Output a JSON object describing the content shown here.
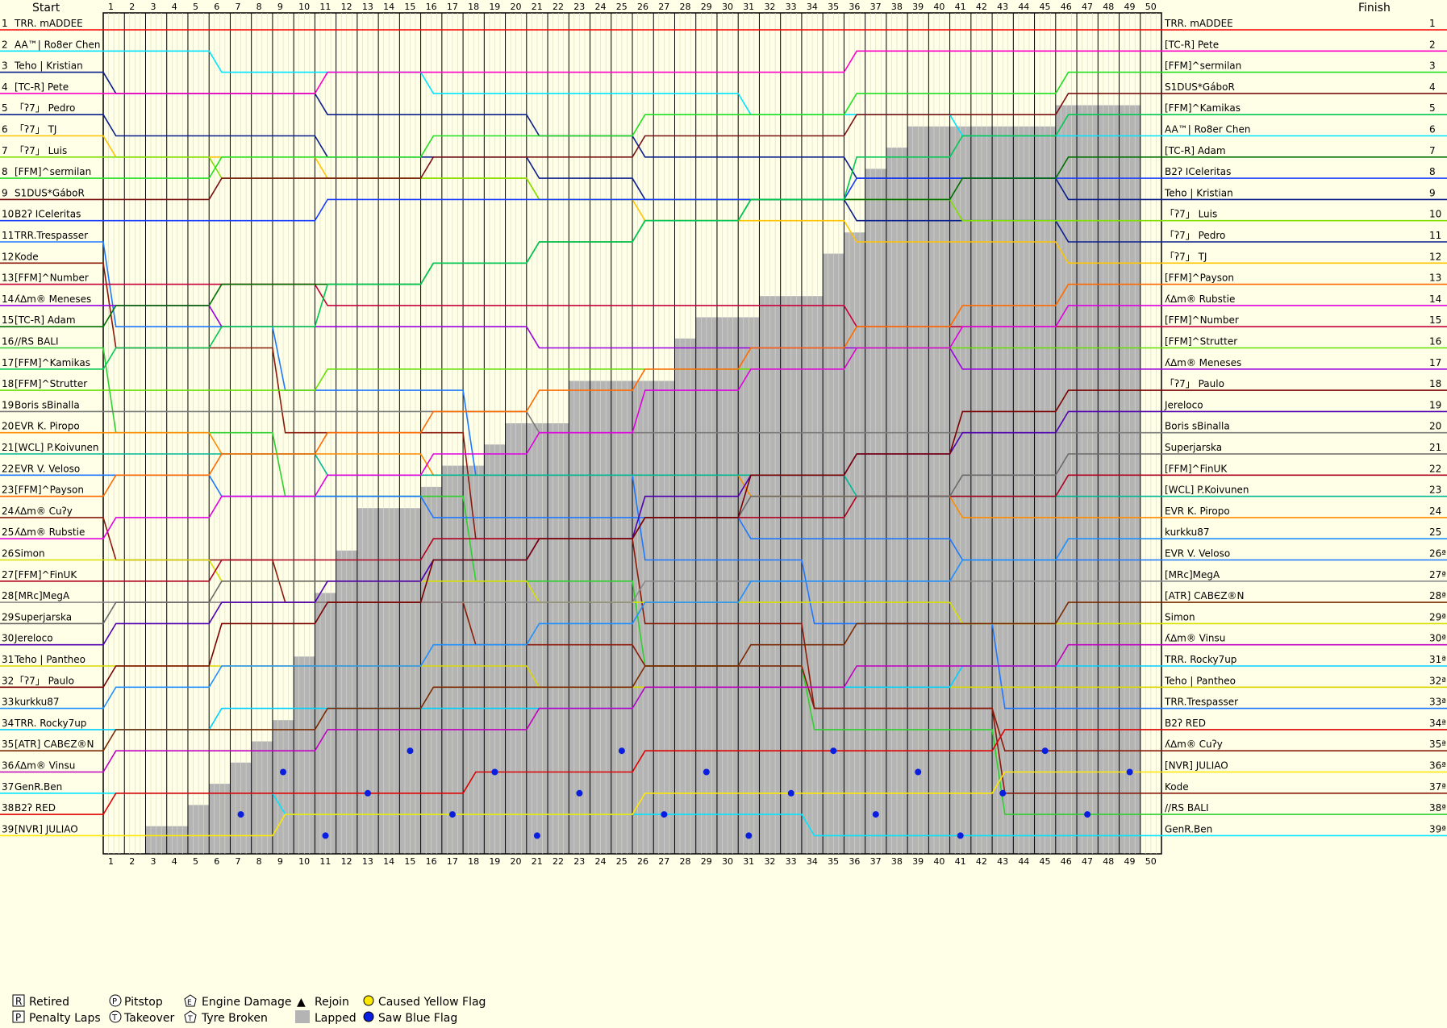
{
  "chart_data": {
    "type": "line",
    "header": {
      "start": "Start",
      "finish": "Finish"
    },
    "laps": 50,
    "positions": 39,
    "start_grid": [
      "TRR. mADDEE",
      "AA™| Ro8er Chen",
      "Teho | Kristian",
      "[TC-R] Pete",
      "「ʔ7」 Pedro",
      "「ʔ7」 TJ",
      "「ʔ7」 Luis",
      "[FFM]^sermilan",
      "S1DUS*GáboR",
      "B2ʔ ICeleritas",
      "TRR.Trespasser",
      "Kode",
      "[FFM]^Number",
      "ʎ∆m® Meneses",
      "[TC-R] Adam",
      "//RS BALI",
      "[FFM]^Kamikas",
      "[FFM]^Strutter",
      "Boris sBinalla",
      "EVR K. Piropo",
      "[WCL] P.Koivunen",
      "EVR V. Veloso",
      "[FFM]^Payson",
      "ʎ∆m® Cuʔy",
      "ʎ∆m® Rubstie",
      "Simon",
      "[FFM]^FinUK",
      "[MRc]MegA",
      "Superjarska",
      "Jereloco",
      "Teho | Pantheo",
      "「ʔ7」 Paulo",
      "kurkku87",
      "TRR. Rocky7up",
      "[ATR] CABЄZ®N",
      "ʎ∆m® Vinsu",
      "GenR.Ben",
      "B2ʔ RED",
      "[NVR] JULIAO"
    ],
    "finish_order": [
      "TRR. mADDEE",
      "[TC-R] Pete",
      "[FFM]^sermilan",
      "S1DUS*GáboR",
      "[FFM]^Kamikas",
      "AA™| Ro8er Chen",
      "[TC-R] Adam",
      "B2ʔ ICeleritas",
      "Teho | Kristian",
      "「ʔ7」 Luis",
      "「ʔ7」 Pedro",
      "「ʔ7」 TJ",
      "[FFM]^Payson",
      "ʎ∆m® Rubstie",
      "[FFM]^Number",
      "[FFM]^Strutter",
      "ʎ∆m® Meneses",
      "「ʔ7」 Paulo",
      "Jereloco",
      "Boris sBinalla",
      "Superjarska",
      "[FFM]^FinUK",
      "[WCL] P.Koivunen",
      "EVR K. Piropo",
      "kurkku87",
      "EVR V. Veloso",
      "[MRc]MegA",
      "[ATR] CABЄZ®N",
      "Simon",
      "ʎ∆m® Vinsu",
      "TRR. Rocky7up",
      "Teho | Pantheo",
      "TRR.Trespasser",
      "B2ʔ RED",
      "ʎ∆m® Cuʔy",
      "[NVR] JULIAO",
      "Kode",
      "//RS BALI",
      "GenR.Ben"
    ],
    "finish_position_labels": [
      "1",
      "2",
      "3",
      "4",
      "5",
      "6",
      "7",
      "8",
      "9",
      "10",
      "11",
      "12",
      "13",
      "14",
      "15",
      "16",
      "17",
      "18",
      "19",
      "20",
      "21",
      "22",
      "23",
      "24",
      "25",
      "26ª",
      "27ª",
      "28ª",
      "29ª",
      "30ª",
      "31ª",
      "32ª",
      "33ª",
      "34ª",
      "35ª",
      "36ª",
      "37ª",
      "38ª",
      "39ª"
    ],
    "retired": [
      "TRR.Trespasser",
      "B2ʔ RED",
      "ʎ∆m® Cuʔy",
      "[NVR] JULIAO",
      "Kode",
      "//RS BALI",
      "GenR.Ben"
    ],
    "driver_colors": {
      "TRR. mADDEE": "#FF0000",
      "AA™| Ro8er Chen": "#00E5FF",
      "Teho | Kristian": "#0A1E8C",
      "[TC-R] Pete": "#FF00C8",
      "「ʔ7」 Pedro": "#0A1E8C",
      "「ʔ7」 TJ": "#FFC400",
      "「ʔ7」 Luis": "#80E000",
      "[FFM]^sermilan": "#20E020",
      "S1DUS*GáboR": "#7A1010",
      "B2ʔ ICeleritas": "#1A3CFF",
      "TRR.Trespasser": "#1E78FF",
      "Kode": "#8B1A0A",
      "[FFM]^Number": "#C8003C",
      "ʎ∆m® Meneses": "#9B00E0",
      "[TC-R] Adam": "#007000",
      "//RS BALI": "#2ED02E",
      "[FFM]^Kamikas": "#00C853",
      "[FFM]^Strutter": "#66E000",
      "Boris sBinalla": "#7A7A7A",
      "EVR K. Piropo": "#FF8C00",
      "[WCL] P.Koivunen": "#00B894",
      "EVR V. Veloso": "#1E78FF",
      "[FFM]^Payson": "#FF6A00",
      "ʎ∆m® Cuʔy": "#8B1A0A",
      "ʎ∆m® Rubstie": "#E000E0",
      "Simon": "#D8E000",
      "[FFM]^FinUK": "#B00020",
      "[MRc]MegA": "#8A8A8A",
      "Superjarska": "#6A6A6A",
      "Jereloco": "#5000B0",
      "Teho | Pantheo": "#D8D800",
      "「ʔ7」 Paulo": "#7A0000",
      "kurkku87": "#1E90FF",
      "TRR. Rocky7up": "#00D0FF",
      "[ATR] CABЄZ®N": "#7A2A00",
      "ʎ∆m® Vinsu": "#C000C0",
      "GenR.Ben": "#00E5FF",
      "B2ʔ RED": "#E00000",
      "[NVR] JULIAO": "#FFE800"
    },
    "leader_laps": 50,
    "lapped_cars_per_lap": [
      0,
      0,
      1,
      1,
      2,
      3,
      4,
      5,
      6,
      9,
      12,
      14,
      16,
      16,
      16,
      17,
      18,
      18,
      19,
      20,
      20,
      20,
      22,
      22,
      22,
      22,
      22,
      24,
      25,
      25,
      25,
      26,
      26,
      26,
      28,
      29,
      32,
      33,
      34,
      34,
      34,
      34,
      34,
      34,
      34,
      35,
      35,
      35,
      35,
      0
    ],
    "grid": true,
    "legend": {
      "retired": "Retired",
      "pitstop": "Pitstop",
      "engine_damage": "Engine Damage",
      "rejoin": "Rejoin",
      "caused_yellow": "Caused Yellow Flag",
      "penalty_laps": "Penalty Laps",
      "takeover": "Takeover",
      "tyre_broken": "Tyre Broken",
      "lapped": "Lapped",
      "saw_blue": "Saw Blue Flag"
    },
    "legend_icons": {
      "retired": "R",
      "penalty_laps": "P",
      "pitstop": "P",
      "takeover": "T",
      "engine_damage": "E",
      "tyre_broken": "T",
      "rejoin": "▲"
    },
    "colors": {
      "background": "#FFFFE8",
      "lapped": "#B4B4B4",
      "blue_flag": "#0A1EE0",
      "yellow_flag": "#FFE800",
      "grid_major": "#000000",
      "grid_minor": "#D8D8C8"
    }
  }
}
